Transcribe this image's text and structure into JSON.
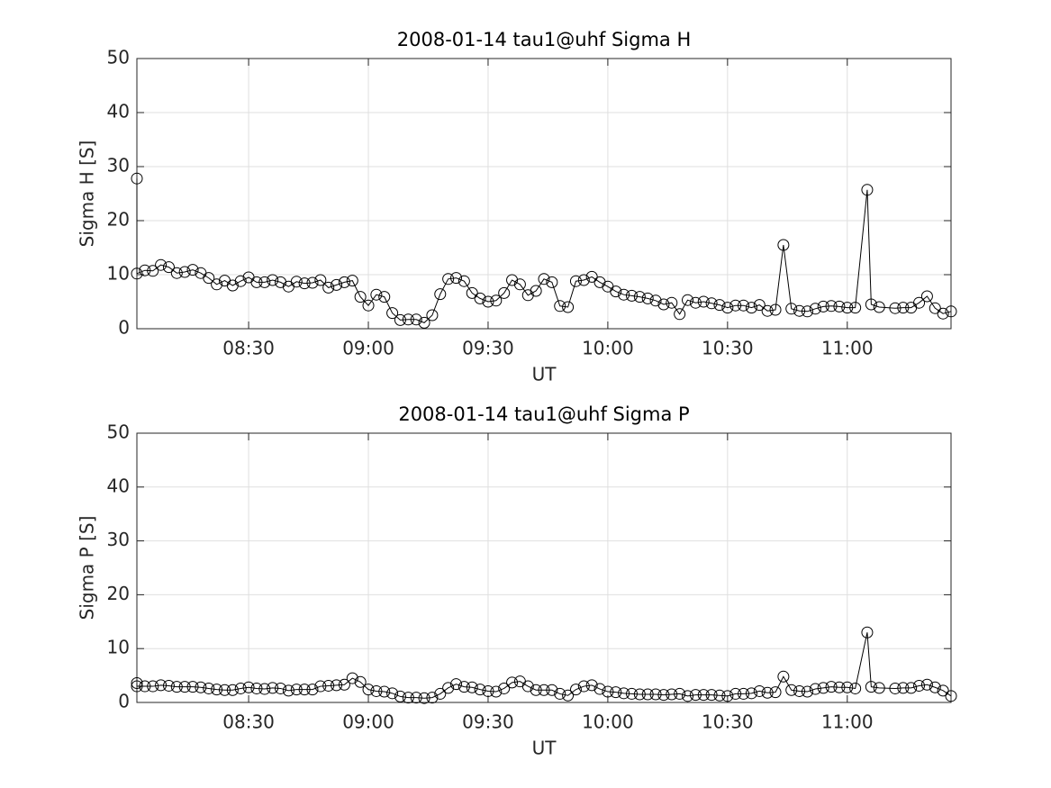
{
  "chart_data": [
    {
      "type": "line",
      "title": "2008-01-14  tau1@uhf Sigma H",
      "xlabel": "UT",
      "ylabel": "Sigma H [S]",
      "x": [
        "08:02",
        "08:02",
        "08:04",
        "08:06",
        "08:08",
        "08:10",
        "08:12",
        "08:14",
        "08:16",
        "08:18",
        "08:20",
        "08:22",
        "08:24",
        "08:26",
        "08:28",
        "08:30",
        "08:32",
        "08:34",
        "08:36",
        "08:38",
        "08:40",
        "08:42",
        "08:44",
        "08:46",
        "08:48",
        "08:50",
        "08:52",
        "08:54",
        "08:56",
        "08:58",
        "09:00",
        "09:02",
        "09:04",
        "09:06",
        "09:08",
        "09:10",
        "09:12",
        "09:14",
        "09:16",
        "09:18",
        "09:20",
        "09:22",
        "09:24",
        "09:26",
        "09:28",
        "09:30",
        "09:32",
        "09:34",
        "09:36",
        "09:38",
        "09:40",
        "09:42",
        "09:44",
        "09:46",
        "09:48",
        "09:50",
        "09:52",
        "09:54",
        "09:56",
        "09:58",
        "10:00",
        "10:02",
        "10:04",
        "10:06",
        "10:08",
        "10:10",
        "10:12",
        "10:14",
        "10:16",
        "10:18",
        "10:20",
        "10:22",
        "10:24",
        "10:26",
        "10:28",
        "10:30",
        "10:32",
        "10:34",
        "10:36",
        "10:38",
        "10:40",
        "10:42",
        "10:44",
        "10:46",
        "10:48",
        "10:50",
        "10:52",
        "10:54",
        "10:56",
        "10:58",
        "11:00",
        "11:02",
        "11:05",
        "11:06",
        "11:08",
        "11:12",
        "11:14",
        "11:16",
        "11:18",
        "11:20",
        "11:22",
        "11:24",
        "11:26"
      ],
      "series": [
        {
          "color": "#000000",
          "values": [
            27.8,
            10.2,
            10.8,
            10.7,
            11.8,
            11.4,
            10.3,
            10.5,
            10.9,
            10.3,
            9.4,
            8.2,
            8.9,
            8.0,
            8.8,
            9.5,
            8.6,
            8.6,
            9.0,
            8.6,
            7.8,
            8.7,
            8.4,
            8.5,
            9.0,
            7.6,
            8.1,
            8.6,
            8.9,
            5.9,
            4.3,
            6.3,
            5.9,
            2.9,
            1.6,
            1.7,
            1.7,
            1.1,
            2.5,
            6.4,
            9.2,
            9.4,
            8.8,
            6.6,
            5.6,
            5.0,
            5.2,
            6.6,
            9.0,
            8.2,
            6.2,
            7.0,
            9.2,
            8.6,
            4.2,
            4.0,
            8.8,
            9.0,
            9.6,
            8.6,
            7.8,
            6.9,
            6.3,
            6.1,
            5.9,
            5.6,
            5.2,
            4.5,
            4.8,
            2.7,
            5.3,
            4.8,
            5.0,
            4.7,
            4.4,
            3.9,
            4.3,
            4.3,
            3.9,
            4.4,
            3.3,
            3.5,
            15.5,
            3.7,
            3.3,
            3.2,
            3.7,
            4.1,
            4.2,
            4.1,
            3.9,
            3.9,
            25.7,
            4.5,
            4.0,
            3.8,
            3.9,
            3.9,
            4.8,
            6.0,
            3.8,
            2.8,
            3.2
          ]
        }
      ],
      "xlim": [
        "08:02",
        "11:26"
      ],
      "xticks": [
        "08:30",
        "09:00",
        "09:30",
        "10:00",
        "10:30",
        "11:00"
      ],
      "ylim": [
        0,
        50
      ],
      "yticks": [
        0,
        10,
        20,
        30,
        40,
        50
      ],
      "grid": true
    },
    {
      "type": "line",
      "title": "2008-01-14  tau1@uhf Sigma P",
      "xlabel": "UT",
      "ylabel": "Sigma P [S]",
      "x": [
        "08:02",
        "08:02",
        "08:04",
        "08:06",
        "08:08",
        "08:10",
        "08:12",
        "08:14",
        "08:16",
        "08:18",
        "08:20",
        "08:22",
        "08:24",
        "08:26",
        "08:28",
        "08:30",
        "08:32",
        "08:34",
        "08:36",
        "08:38",
        "08:40",
        "08:42",
        "08:44",
        "08:46",
        "08:48",
        "08:50",
        "08:52",
        "08:54",
        "08:56",
        "08:58",
        "09:00",
        "09:02",
        "09:04",
        "09:06",
        "09:08",
        "09:10",
        "09:12",
        "09:14",
        "09:16",
        "09:18",
        "09:20",
        "09:22",
        "09:24",
        "09:26",
        "09:28",
        "09:30",
        "09:32",
        "09:34",
        "09:36",
        "09:38",
        "09:40",
        "09:42",
        "09:44",
        "09:46",
        "09:48",
        "09:50",
        "09:52",
        "09:54",
        "09:56",
        "09:58",
        "10:00",
        "10:02",
        "10:04",
        "10:06",
        "10:08",
        "10:10",
        "10:12",
        "10:14",
        "10:16",
        "10:18",
        "10:20",
        "10:22",
        "10:24",
        "10:26",
        "10:28",
        "10:30",
        "10:32",
        "10:34",
        "10:36",
        "10:38",
        "10:40",
        "10:42",
        "10:44",
        "10:46",
        "10:48",
        "10:50",
        "10:52",
        "10:54",
        "10:56",
        "10:58",
        "11:00",
        "11:02",
        "11:05",
        "11:06",
        "11:08",
        "11:12",
        "11:14",
        "11:16",
        "11:18",
        "11:20",
        "11:22",
        "11:24",
        "11:26"
      ],
      "series": [
        {
          "color": "#000000",
          "values": [
            3.6,
            3.0,
            3.0,
            3.0,
            3.2,
            3.1,
            2.9,
            2.9,
            2.9,
            2.8,
            2.6,
            2.4,
            2.3,
            2.3,
            2.6,
            2.8,
            2.6,
            2.5,
            2.7,
            2.6,
            2.2,
            2.4,
            2.4,
            2.4,
            3.0,
            3.1,
            3.2,
            3.3,
            4.5,
            3.8,
            2.4,
            2.1,
            2.0,
            1.7,
            1.1,
            0.9,
            0.9,
            0.8,
            0.9,
            1.6,
            2.7,
            3.4,
            2.9,
            2.8,
            2.4,
            2.1,
            2.0,
            2.6,
            3.7,
            3.9,
            3.0,
            2.3,
            2.3,
            2.3,
            1.6,
            1.3,
            2.4,
            3.0,
            3.2,
            2.5,
            2.0,
            1.9,
            1.7,
            1.6,
            1.5,
            1.5,
            1.5,
            1.4,
            1.5,
            1.6,
            1.2,
            1.4,
            1.4,
            1.4,
            1.3,
            1.2,
            1.6,
            1.6,
            1.7,
            2.1,
            1.8,
            1.9,
            4.8,
            2.3,
            2.1,
            2.0,
            2.5,
            2.7,
            2.9,
            2.8,
            2.8,
            2.6,
            13.0,
            2.9,
            2.7,
            2.6,
            2.7,
            2.7,
            3.1,
            3.3,
            2.8,
            2.2,
            1.2
          ]
        }
      ],
      "xlim": [
        "08:02",
        "11:26"
      ],
      "xticks": [
        "08:30",
        "09:00",
        "09:30",
        "10:00",
        "10:30",
        "11:00"
      ],
      "ylim": [
        0,
        50
      ],
      "yticks": [
        0,
        10,
        20,
        30,
        40,
        50
      ],
      "grid": true
    }
  ]
}
